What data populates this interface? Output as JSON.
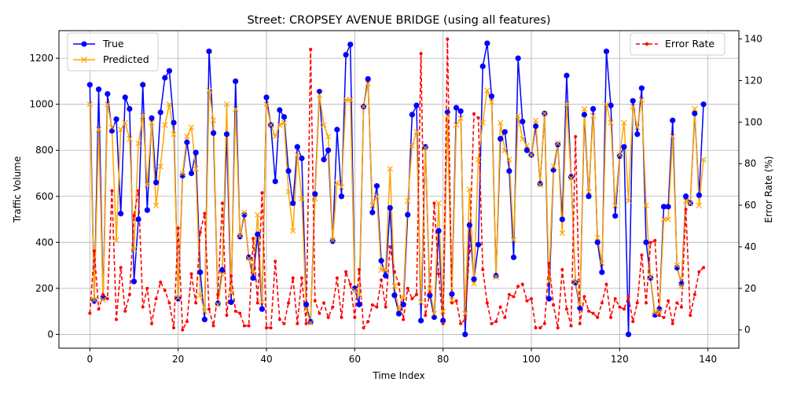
{
  "chart_data": {
    "type": "line",
    "title": "Street: CROPSEY AVENUE BRIDGE (using all features)",
    "xlabel": "Time Index",
    "ylabel": "Traffic Volume",
    "ylabel_right": "Error Rate (%)",
    "xlim": [
      -7,
      147
    ],
    "ylim": [
      -60,
      1320
    ],
    "ylim_right": [
      -8.8,
      144
    ],
    "xticks": [
      0,
      20,
      40,
      60,
      80,
      100,
      120,
      140
    ],
    "yticks": [
      0,
      200,
      400,
      600,
      800,
      1000,
      1200
    ],
    "yticks_right": [
      0,
      20,
      40,
      60,
      80,
      100,
      120,
      140
    ],
    "grid": true,
    "legend_left": [
      "True",
      "Predicted"
    ],
    "legend_right": [
      "Error Rate"
    ],
    "colors": {
      "true": "#0000ff",
      "predicted": "#ffa500",
      "error": "#ff0000"
    },
    "x": [
      0,
      1,
      2,
      3,
      4,
      5,
      6,
      7,
      8,
      9,
      10,
      11,
      12,
      13,
      14,
      15,
      16,
      17,
      18,
      19,
      20,
      21,
      22,
      23,
      24,
      25,
      26,
      27,
      28,
      29,
      30,
      31,
      32,
      33,
      34,
      35,
      36,
      37,
      38,
      39,
      40,
      41,
      42,
      43,
      44,
      45,
      46,
      47,
      48,
      49,
      50,
      51,
      52,
      53,
      54,
      55,
      56,
      57,
      58,
      59,
      60,
      61,
      62,
      63,
      64,
      65,
      66,
      67,
      68,
      69,
      70,
      71,
      72,
      73,
      74,
      75,
      76,
      77,
      78,
      79,
      80,
      81,
      82,
      83,
      84,
      85,
      86,
      87,
      88,
      89,
      90,
      91,
      92,
      93,
      94,
      95,
      96,
      97,
      98,
      99,
      100,
      101,
      102,
      103,
      104,
      105,
      106,
      107,
      108,
      109,
      110,
      111,
      112,
      113,
      114,
      115,
      116,
      117,
      118,
      119,
      120,
      121,
      122,
      123,
      124,
      125,
      126,
      127,
      128,
      129,
      130,
      131,
      132,
      133,
      134,
      135,
      136,
      137,
      138,
      139
    ],
    "series": [
      {
        "name": "True",
        "values": [
          1085,
          145,
          1065,
          160,
          1045,
          885,
          935,
          525,
          1030,
          980,
          230,
          500,
          1085,
          540,
          940,
          660,
          965,
          1115,
          1145,
          920,
          155,
          690,
          835,
          700,
          790,
          270,
          65,
          1230,
          875,
          135,
          280,
          870,
          140,
          1100,
          425,
          520,
          335,
          245,
          435,
          110,
          1030,
          910,
          665,
          975,
          945,
          710,
          570,
          815,
          765,
          130,
          55,
          610,
          1055,
          760,
          800,
          405,
          890,
          600,
          1215,
          1260,
          200,
          130,
          990,
          1110,
          530,
          645,
          320,
          255,
          550,
          170,
          90,
          130,
          520,
          955,
          995,
          60,
          815,
          170,
          75,
          450,
          60,
          965,
          175,
          985,
          970,
          0,
          475,
          240,
          390,
          1165,
          1265,
          1035,
          255,
          850,
          880,
          710,
          335,
          1200,
          925,
          800,
          780,
          905,
          655,
          960,
          155,
          715,
          825,
          500,
          1125,
          685,
          225,
          115,
          955,
          600,
          980,
          400,
          270,
          1230,
          995,
          515,
          775,
          815,
          0,
          1015,
          870,
          1070,
          400,
          245,
          85,
          110,
          555,
          555,
          930,
          290,
          220,
          600,
          570,
          960,
          605,
          1000
        ]
      },
      {
        "name": "Predicted",
        "values": [
          1000,
          150,
          890,
          150,
          1000,
          900,
          410,
          890,
          920,
          850,
          370,
          830,
          950,
          650,
          920,
          560,
          730,
          910,
          1000,
          870,
          160,
          700,
          860,
          900,
          720,
          170,
          100,
          1060,
          930,
          130,
          260,
          1000,
          180,
          980,
          430,
          530,
          330,
          270,
          520,
          140,
          1000,
          910,
          860,
          910,
          920,
          620,
          450,
          780,
          590,
          110,
          50,
          590,
          1040,
          910,
          860,
          410,
          660,
          640,
          1020,
          1020,
          190,
          170,
          990,
          1090,
          560,
          600,
          280,
          280,
          720,
          210,
          110,
          160,
          580,
          820,
          880,
          140,
          810,
          200,
          90,
          570,
          100,
          950,
          150,
          910,
          940,
          90,
          630,
          220,
          760,
          920,
          1060,
          1010,
          250,
          920,
          800,
          760,
          410,
          950,
          850,
          820,
          780,
          930,
          650,
          960,
          230,
          730,
          830,
          440,
          1000,
          680,
          230,
          130,
          980,
          620,
          950,
          420,
          310,
          1000,
          920,
          560,
          780,
          920,
          580,
          990,
          900,
          1020,
          560,
          250,
          95,
          100,
          500,
          500,
          860,
          300,
          210,
          580,
          570,
          980,
          560,
          760
        ]
      },
      {
        "name": "Error Rate",
        "values": [
          8,
          38,
          10,
          17,
          15,
          67,
          5,
          30,
          9,
          17,
          55,
          67,
          11,
          20,
          3,
          15,
          23,
          19,
          13,
          1,
          49,
          0,
          4,
          27,
          13,
          47,
          56,
          10,
          2,
          17,
          61,
          7,
          26,
          9,
          8,
          2,
          2,
          44,
          13,
          66,
          1,
          1,
          33,
          5,
          3,
          13,
          25,
          3,
          25,
          3,
          135,
          14,
          8,
          13,
          6,
          11,
          25,
          6,
          28,
          22,
          6,
          29,
          1,
          4,
          12,
          11,
          24,
          11,
          40,
          28,
          22,
          5,
          20,
          15,
          17,
          133,
          7,
          18,
          61,
          27,
          3,
          140,
          13,
          14,
          3,
          5,
          38,
          104,
          102,
          29,
          13,
          3,
          4,
          11,
          6,
          17,
          16,
          21,
          22,
          14,
          15,
          1,
          1,
          3,
          32,
          12,
          1,
          29,
          10,
          2,
          93,
          3,
          16,
          9,
          8,
          6,
          13,
          22,
          6,
          15,
          11,
          10,
          16,
          4,
          13,
          36,
          13,
          42,
          43,
          7,
          6,
          14,
          3,
          13,
          11,
          58,
          7,
          17,
          28,
          30
        ]
      }
    ]
  }
}
